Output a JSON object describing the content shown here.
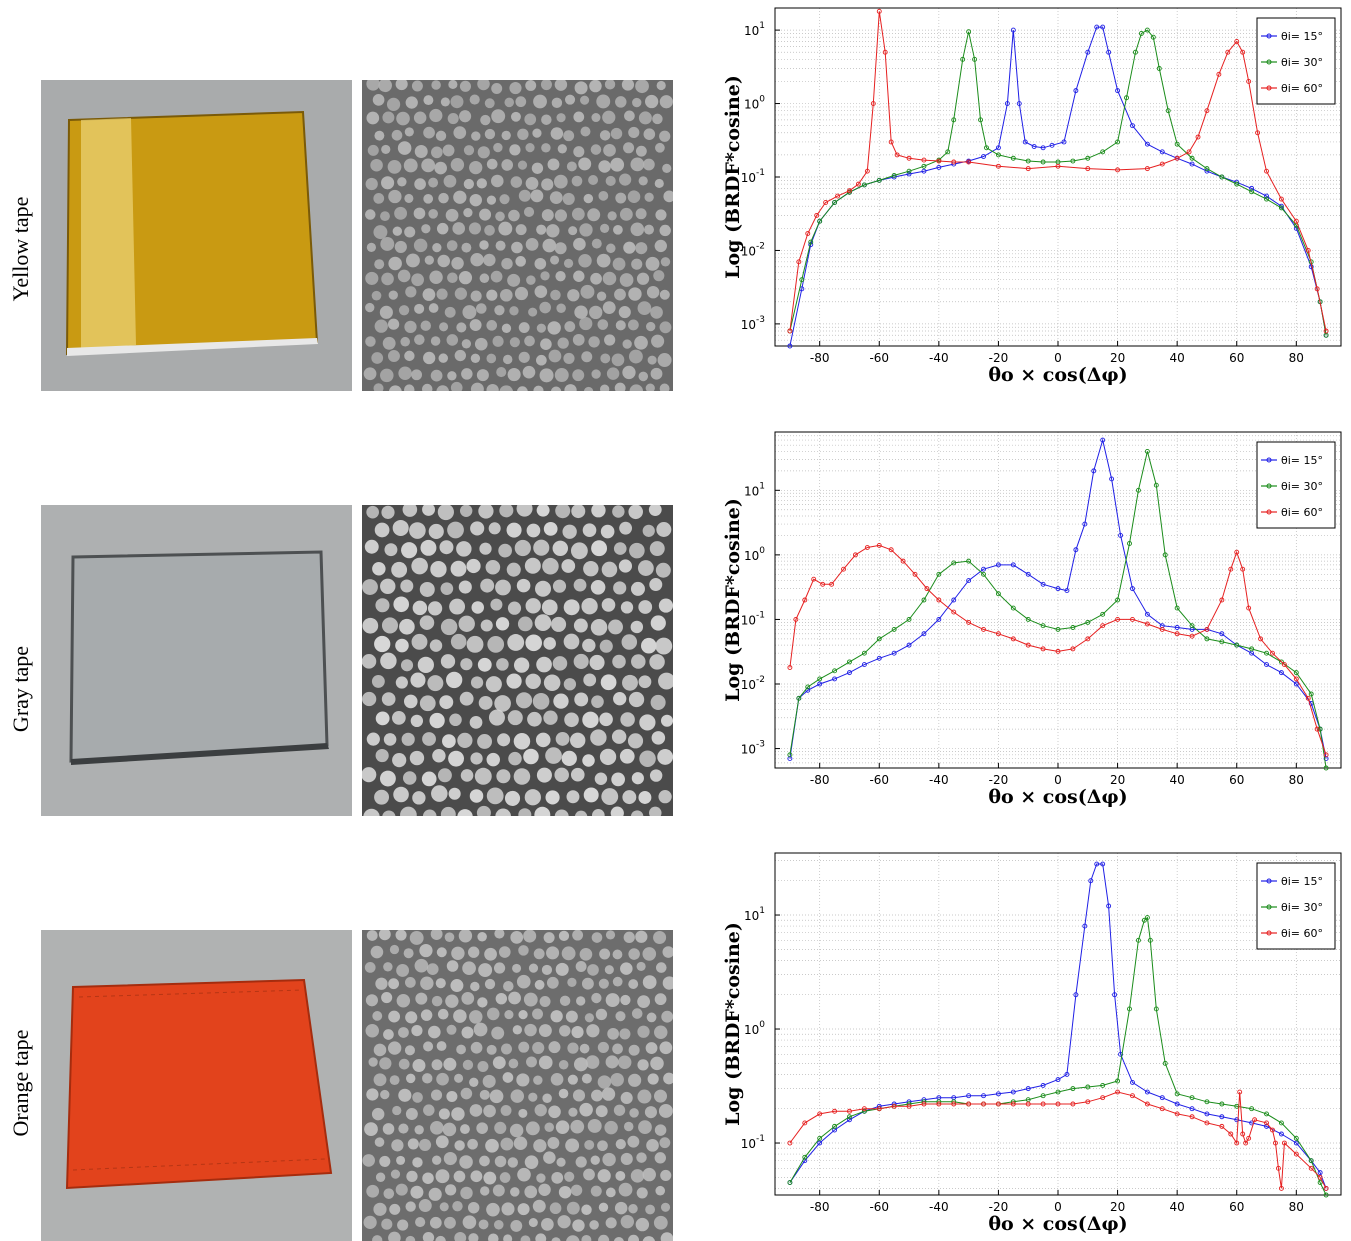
{
  "rows": [
    {
      "label": "Yellow tape",
      "tape_color": "#c99a12",
      "micro_bg": "#6a6a6a",
      "micro_dot": "#b4b4b4"
    },
    {
      "label": "Gray tape",
      "tape_color": "#a7abad",
      "micro_bg": "#4b4b4b",
      "micro_dot": "#d7d7d7"
    },
    {
      "label": "Orange tape",
      "tape_color": "#e2431c",
      "micro_bg": "#6d6d6d",
      "micro_dot": "#bdbdbd"
    }
  ],
  "colors": {
    "blue": "#1f1fe6",
    "green": "#1a8c1a",
    "red": "#e62020",
    "photo_bg": "#a9abac"
  },
  "chart_data": [
    {
      "type": "line",
      "ylabel": "Log (BRDF*cosine)",
      "xlabel": "θo × cos(Δφ)",
      "xlim": [
        -95,
        95
      ],
      "ylim": [
        0.0005,
        20
      ],
      "yscale": "log",
      "xticks": [
        "-80",
        "-60",
        "-40",
        "-20",
        "0",
        "20",
        "40",
        "60",
        "80"
      ],
      "yticks": [
        {
          "v": 0.001,
          "b": "10",
          "e": "-3"
        },
        {
          "v": 0.01,
          "b": "10",
          "e": "-2"
        },
        {
          "v": 0.1,
          "b": "10",
          "e": "-1"
        },
        {
          "v": 1,
          "b": "10",
          "e": "0"
        },
        {
          "v": 10,
          "b": "10",
          "e": "1"
        }
      ],
      "grid": true,
      "legend": "top-right",
      "series": [
        {
          "name": "θi= 15°",
          "color": "#1f1fe6",
          "x": [
            -90,
            -86,
            -83,
            -80,
            -75,
            -70,
            -65,
            -60,
            -55,
            -50,
            -45,
            -40,
            -35,
            -30,
            -25,
            -20,
            -17,
            -15,
            -13,
            -11,
            -8,
            -5,
            -2,
            2,
            6,
            10,
            13,
            15,
            17,
            20,
            25,
            30,
            35,
            40,
            45,
            50,
            55,
            60,
            65,
            70,
            75,
            80,
            85,
            88,
            90
          ],
          "y": [
            0.0005,
            0.003,
            0.012,
            0.025,
            0.045,
            0.062,
            0.078,
            0.09,
            0.1,
            0.11,
            0.12,
            0.135,
            0.15,
            0.165,
            0.19,
            0.25,
            1.0,
            10,
            1.0,
            0.3,
            0.26,
            0.25,
            0.27,
            0.3,
            1.5,
            5,
            11,
            11,
            5,
            1.5,
            0.5,
            0.28,
            0.22,
            0.18,
            0.15,
            0.12,
            0.1,
            0.085,
            0.07,
            0.055,
            0.04,
            0.02,
            0.006,
            0.002,
            0.0007
          ]
        },
        {
          "name": "θi= 30°",
          "color": "#1a8c1a",
          "x": [
            -90,
            -86,
            -83,
            -80,
            -75,
            -70,
            -65,
            -60,
            -55,
            -50,
            -45,
            -40,
            -37,
            -35,
            -32,
            -30,
            -28,
            -26,
            -24,
            -20,
            -15,
            -10,
            -5,
            0,
            5,
            10,
            15,
            20,
            23,
            26,
            28,
            30,
            32,
            34,
            37,
            40,
            45,
            50,
            55,
            60,
            65,
            70,
            75,
            80,
            85,
            88,
            90
          ],
          "y": [
            0.0008,
            0.004,
            0.013,
            0.025,
            0.045,
            0.062,
            0.078,
            0.09,
            0.105,
            0.12,
            0.14,
            0.17,
            0.22,
            0.6,
            4,
            9.5,
            4,
            0.6,
            0.25,
            0.2,
            0.18,
            0.165,
            0.16,
            0.16,
            0.165,
            0.18,
            0.22,
            0.3,
            1.2,
            5,
            9,
            10,
            8,
            3,
            0.8,
            0.28,
            0.18,
            0.13,
            0.1,
            0.08,
            0.063,
            0.05,
            0.038,
            0.022,
            0.007,
            0.002,
            0.0007
          ]
        },
        {
          "name": "θi= 60°",
          "color": "#e62020",
          "x": [
            -90,
            -87,
            -84,
            -81,
            -78,
            -74,
            -70,
            -67,
            -64,
            -62,
            -60,
            -58,
            -56,
            -54,
            -50,
            -45,
            -40,
            -35,
            -30,
            -20,
            -10,
            0,
            10,
            20,
            30,
            35,
            40,
            44,
            47,
            50,
            54,
            57,
            60,
            62,
            64,
            67,
            70,
            75,
            80,
            84,
            87,
            90
          ],
          "y": [
            0.0008,
            0.007,
            0.017,
            0.03,
            0.045,
            0.055,
            0.065,
            0.08,
            0.12,
            1.0,
            18,
            5,
            0.3,
            0.2,
            0.18,
            0.17,
            0.165,
            0.16,
            0.16,
            0.14,
            0.13,
            0.14,
            0.13,
            0.125,
            0.13,
            0.15,
            0.18,
            0.22,
            0.35,
            0.8,
            2.5,
            5,
            7,
            5,
            2,
            0.4,
            0.12,
            0.05,
            0.025,
            0.01,
            0.003,
            0.0008
          ]
        }
      ]
    },
    {
      "type": "line",
      "ylabel": "Log (BRDF*cosine)",
      "xlabel": "θo × cos(Δφ)",
      "xlim": [
        -95,
        95
      ],
      "ylim": [
        0.0005,
        80
      ],
      "yscale": "log",
      "xticks": [
        "-80",
        "-60",
        "-40",
        "-20",
        "0",
        "20",
        "40",
        "60",
        "80"
      ],
      "yticks": [
        {
          "v": 0.001,
          "b": "10",
          "e": "-3"
        },
        {
          "v": 0.01,
          "b": "10",
          "e": "-2"
        },
        {
          "v": 0.1,
          "b": "10",
          "e": "-1"
        },
        {
          "v": 1,
          "b": "10",
          "e": "0"
        },
        {
          "v": 10,
          "b": "10",
          "e": "1"
        }
      ],
      "grid": true,
      "legend": "top-right",
      "series": [
        {
          "name": "θi= 15°",
          "color": "#1f1fe6",
          "x": [
            -90,
            -87,
            -84,
            -80,
            -75,
            -70,
            -65,
            -60,
            -55,
            -50,
            -45,
            -40,
            -35,
            -30,
            -25,
            -20,
            -15,
            -10,
            -5,
            0,
            3,
            6,
            9,
            12,
            15,
            18,
            21,
            25,
            30,
            35,
            40,
            45,
            50,
            55,
            60,
            65,
            70,
            75,
            80,
            85,
            88,
            90
          ],
          "y": [
            0.0007,
            0.006,
            0.008,
            0.01,
            0.012,
            0.015,
            0.02,
            0.025,
            0.03,
            0.04,
            0.06,
            0.1,
            0.2,
            0.4,
            0.6,
            0.7,
            0.7,
            0.5,
            0.35,
            0.3,
            0.28,
            1.2,
            3,
            20,
            60,
            15,
            2,
            0.3,
            0.12,
            0.08,
            0.075,
            0.07,
            0.07,
            0.06,
            0.04,
            0.03,
            0.02,
            0.015,
            0.01,
            0.005,
            0.002,
            0.0007
          ]
        },
        {
          "name": "θi= 30°",
          "color": "#1a8c1a",
          "x": [
            -90,
            -87,
            -84,
            -80,
            -75,
            -70,
            -65,
            -60,
            -55,
            -50,
            -45,
            -40,
            -35,
            -30,
            -25,
            -20,
            -15,
            -10,
            -5,
            0,
            5,
            10,
            15,
            20,
            24,
            27,
            30,
            33,
            36,
            40,
            45,
            50,
            55,
            60,
            65,
            70,
            75,
            80,
            85,
            88,
            90
          ],
          "y": [
            0.0008,
            0.006,
            0.009,
            0.012,
            0.016,
            0.022,
            0.03,
            0.05,
            0.07,
            0.1,
            0.2,
            0.5,
            0.75,
            0.8,
            0.5,
            0.25,
            0.15,
            0.1,
            0.08,
            0.07,
            0.075,
            0.09,
            0.12,
            0.2,
            1.5,
            10,
            40,
            12,
            1,
            0.15,
            0.08,
            0.05,
            0.045,
            0.04,
            0.035,
            0.03,
            0.022,
            0.015,
            0.007,
            0.002,
            0.0005
          ]
        },
        {
          "name": "θi= 60°",
          "color": "#e62020",
          "x": [
            -90,
            -88,
            -85,
            -82,
            -79,
            -76,
            -72,
            -68,
            -64,
            -60,
            -56,
            -52,
            -48,
            -44,
            -40,
            -35,
            -30,
            -25,
            -20,
            -15,
            -10,
            -5,
            0,
            5,
            10,
            15,
            20,
            25,
            30,
            35,
            40,
            45,
            50,
            55,
            58,
            60,
            62,
            64,
            68,
            72,
            76,
            80,
            84,
            87,
            90
          ],
          "y": [
            0.018,
            0.1,
            0.2,
            0.42,
            0.35,
            0.35,
            0.6,
            1.0,
            1.3,
            1.4,
            1.2,
            0.8,
            0.5,
            0.3,
            0.2,
            0.13,
            0.09,
            0.07,
            0.06,
            0.05,
            0.04,
            0.035,
            0.032,
            0.035,
            0.05,
            0.08,
            0.1,
            0.1,
            0.085,
            0.07,
            0.06,
            0.055,
            0.07,
            0.2,
            0.6,
            1.1,
            0.6,
            0.15,
            0.05,
            0.03,
            0.02,
            0.012,
            0.006,
            0.002,
            0.0008
          ]
        }
      ]
    },
    {
      "type": "line",
      "ylabel": "Log (BRDF*cosine)",
      "xlabel": "θo × cos(Δφ)",
      "xlim": [
        -95,
        95
      ],
      "ylim": [
        0.035,
        35
      ],
      "yscale": "log",
      "xticks": [
        "-80",
        "-60",
        "-40",
        "-20",
        "0",
        "20",
        "40",
        "60",
        "80"
      ],
      "yticks": [
        {
          "v": 0.1,
          "b": "10",
          "e": "-1"
        },
        {
          "v": 1,
          "b": "10",
          "e": "0"
        },
        {
          "v": 10,
          "b": "10",
          "e": "1"
        }
      ],
      "grid": true,
      "legend": "top-right",
      "series": [
        {
          "name": "θi= 15°",
          "color": "#1f1fe6",
          "x": [
            -90,
            -85,
            -80,
            -75,
            -70,
            -65,
            -60,
            -55,
            -50,
            -45,
            -40,
            -35,
            -30,
            -25,
            -20,
            -15,
            -10,
            -5,
            0,
            3,
            6,
            9,
            11,
            13,
            15,
            17,
            19,
            21,
            25,
            30,
            35,
            40,
            45,
            50,
            55,
            60,
            65,
            70,
            75,
            80,
            85,
            88,
            90
          ],
          "y": [
            0.045,
            0.07,
            0.1,
            0.13,
            0.16,
            0.19,
            0.21,
            0.22,
            0.23,
            0.24,
            0.25,
            0.25,
            0.26,
            0.26,
            0.27,
            0.28,
            0.3,
            0.32,
            0.36,
            0.4,
            2,
            8,
            20,
            28,
            28,
            12,
            2,
            0.6,
            0.34,
            0.28,
            0.25,
            0.22,
            0.2,
            0.18,
            0.17,
            0.16,
            0.15,
            0.14,
            0.12,
            0.1,
            0.07,
            0.055,
            0.04
          ]
        },
        {
          "name": "θi= 30°",
          "color": "#1a8c1a",
          "x": [
            -90,
            -85,
            -80,
            -75,
            -70,
            -65,
            -60,
            -55,
            -50,
            -45,
            -40,
            -35,
            -30,
            -25,
            -20,
            -15,
            -10,
            -5,
            0,
            5,
            10,
            15,
            20,
            24,
            27,
            29,
            30,
            31,
            33,
            36,
            40,
            45,
            50,
            55,
            60,
            65,
            70,
            75,
            80,
            85,
            88,
            90
          ],
          "y": [
            0.045,
            0.075,
            0.11,
            0.14,
            0.17,
            0.19,
            0.2,
            0.21,
            0.22,
            0.23,
            0.23,
            0.23,
            0.22,
            0.22,
            0.22,
            0.23,
            0.24,
            0.26,
            0.28,
            0.3,
            0.31,
            0.32,
            0.35,
            1.5,
            6,
            9,
            9.5,
            6,
            1.5,
            0.5,
            0.27,
            0.25,
            0.23,
            0.22,
            0.21,
            0.2,
            0.18,
            0.15,
            0.11,
            0.07,
            0.045,
            0.032
          ]
        },
        {
          "name": "θi= 60°",
          "color": "#e62020",
          "x": [
            -90,
            -85,
            -80,
            -75,
            -70,
            -65,
            -60,
            -55,
            -50,
            -45,
            -40,
            -35,
            -30,
            -25,
            -20,
            -15,
            -10,
            -5,
            0,
            5,
            10,
            15,
            20,
            25,
            30,
            35,
            40,
            45,
            50,
            55,
            58,
            60,
            61,
            62,
            63,
            64,
            66,
            70,
            72,
            73,
            74,
            75,
            76,
            80,
            85,
            88,
            90
          ],
          "y": [
            0.1,
            0.15,
            0.18,
            0.19,
            0.19,
            0.2,
            0.2,
            0.21,
            0.21,
            0.22,
            0.22,
            0.22,
            0.22,
            0.22,
            0.22,
            0.22,
            0.22,
            0.22,
            0.22,
            0.22,
            0.23,
            0.25,
            0.28,
            0.26,
            0.22,
            0.2,
            0.18,
            0.17,
            0.15,
            0.14,
            0.12,
            0.1,
            0.28,
            0.12,
            0.1,
            0.11,
            0.16,
            0.15,
            0.13,
            0.1,
            0.06,
            0.04,
            0.1,
            0.08,
            0.06,
            0.05,
            0.04
          ]
        }
      ]
    }
  ]
}
